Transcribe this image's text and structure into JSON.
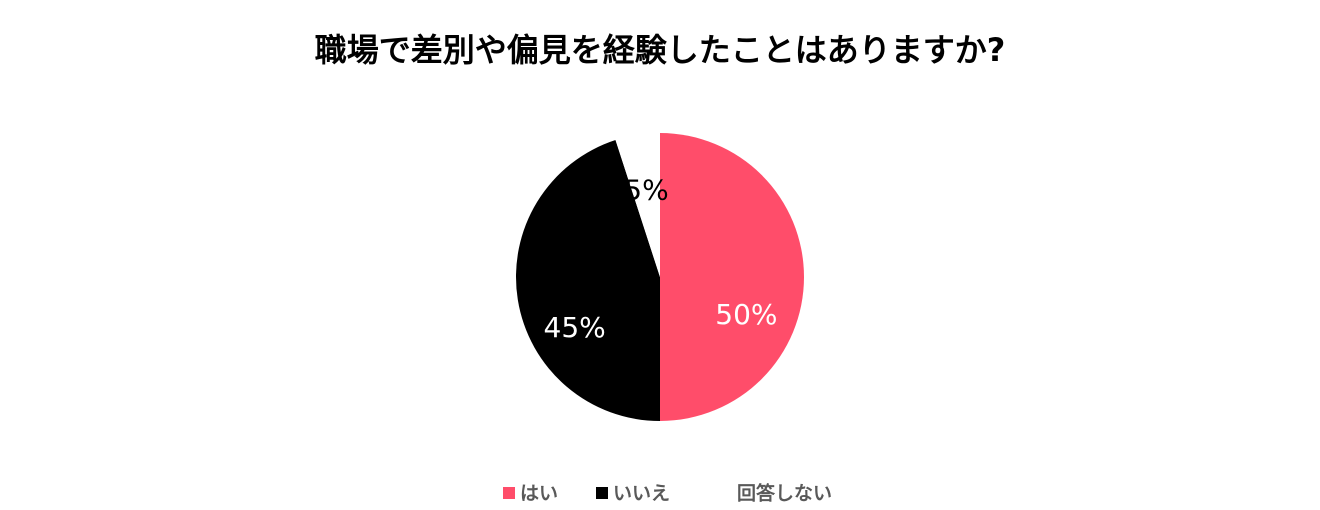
{
  "chart_data": {
    "type": "pie",
    "title": "職場で差別や偏見を経験したことはありますか?",
    "categories": [
      "はい",
      "いいえ",
      "回答しない"
    ],
    "values": [
      50,
      45,
      5
    ],
    "value_labels": [
      "50%",
      "45%",
      "5%"
    ],
    "colors": [
      "#ff4d6a",
      "#000000",
      "#ffffff"
    ],
    "legend": "bottom"
  }
}
